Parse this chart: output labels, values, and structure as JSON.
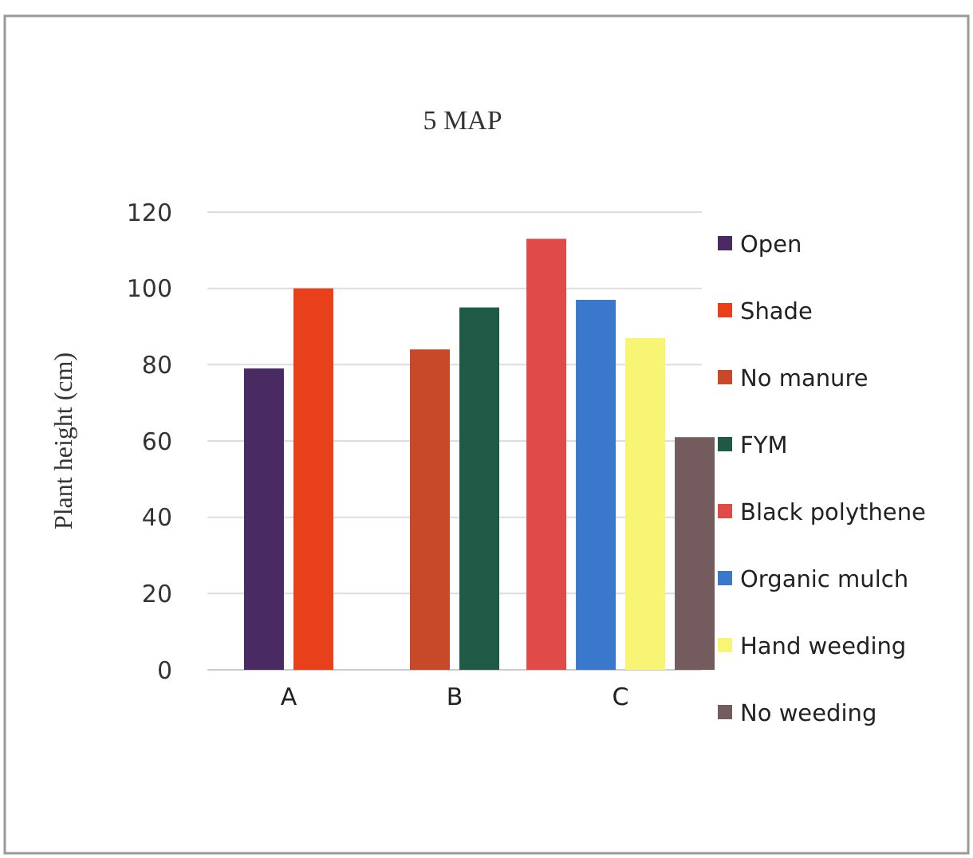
{
  "chart_data": {
    "type": "bar",
    "title": "5 MAP",
    "ylabel": "Plant height (cm)",
    "categories": [
      "A",
      "B",
      "C"
    ],
    "series": [
      {
        "name": "Open",
        "color": "#4a2a62",
        "values": [
          79,
          null,
          null
        ]
      },
      {
        "name": "Shade",
        "color": "#e8401a",
        "values": [
          100,
          null,
          null
        ]
      },
      {
        "name": "No manure",
        "color": "#c8482a",
        "values": [
          null,
          84,
          null
        ]
      },
      {
        "name": "FYM",
        "color": "#1e5a46",
        "values": [
          null,
          95,
          null
        ]
      },
      {
        "name": "Black polythene",
        "color": "#e04a48",
        "values": [
          null,
          null,
          113
        ]
      },
      {
        "name": "Organic mulch",
        "color": "#3a78cc",
        "values": [
          null,
          null,
          97
        ]
      },
      {
        "name": "Hand weeding",
        "color": "#f8f474",
        "values": [
          null,
          null,
          87
        ]
      },
      {
        "name": "No weeding",
        "color": "#745c5e",
        "values": [
          null,
          null,
          61
        ]
      }
    ],
    "ylim": [
      0,
      120
    ],
    "yticks": [
      0,
      20,
      40,
      60,
      80,
      100,
      120
    ],
    "grid": "y",
    "legend": "right"
  }
}
